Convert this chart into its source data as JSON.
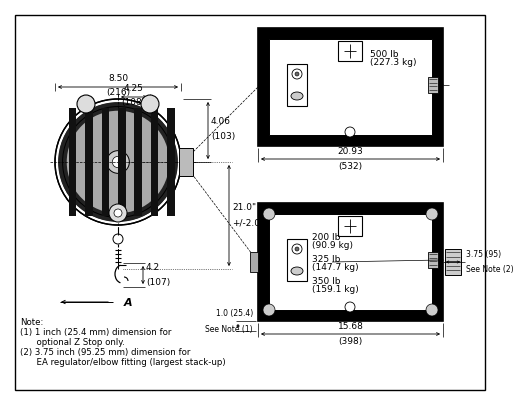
{
  "bg_color": "#ffffff",
  "line_color": "#000000",
  "fs": 6.5,
  "fs_note": 6.2,
  "dims": {
    "top_width": "8.50",
    "top_width_mm": "(216)",
    "mid_width": "4.25",
    "mid_width_mm": "(108)",
    "height_top": "4.06",
    "height_top_mm": "(103)",
    "travel": "21.0\"",
    "travel_pm": "+/-2.0\"",
    "hook_dist": "4.2",
    "hook_dist_mm": "(107)",
    "label_A": "A",
    "side_width": "20.93",
    "side_width_mm": "(532)",
    "bottom_width": "15.68",
    "bottom_width_mm": "(398)",
    "note1_dim": "1.0 (25.4)",
    "note1_label": "See Note (1)",
    "note2_dim": "3.75 (95)",
    "note2_label": "See Note (2)",
    "weight_500": "500 lb",
    "weight_500_kg": "(227.3 kg)",
    "weight_200": "200 lb",
    "weight_200_kg": "(90.9 kg)",
    "weight_325": "325 lb",
    "weight_325_kg": "(147.7 kg)",
    "weight_350": "350 lb",
    "weight_350_kg": "(159.1 kg)"
  },
  "notes": [
    "Note:",
    "(1) 1 inch (25.4 mm) dimension for",
    "      optional Z Stop only.",
    "(2) 3.75 inch (95.25 mm) dimension for",
    "      EA regulator/elbow fitting (largest stack-up)"
  ]
}
